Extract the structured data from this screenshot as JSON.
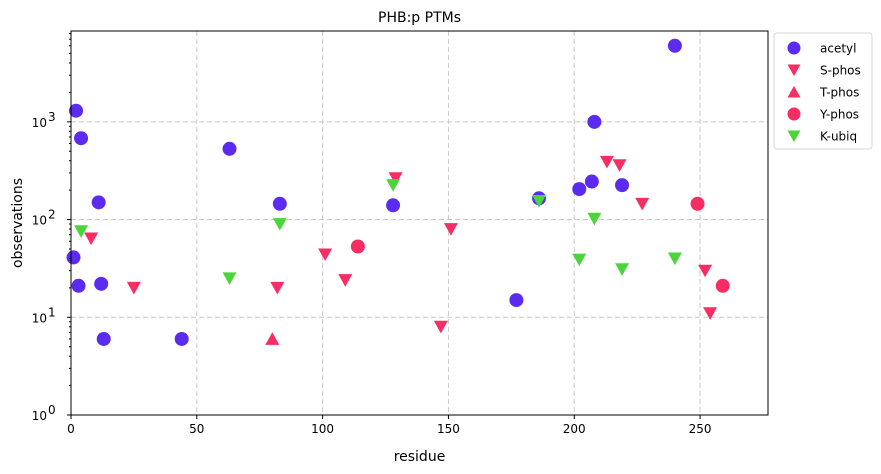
{
  "chart_data": {
    "type": "scatter",
    "title": "PHB:p PTMs",
    "xlabel": "residue",
    "ylabel": "observations",
    "xlim": [
      0,
      277
    ],
    "ylim": [
      1,
      8500
    ],
    "yscale": "log",
    "grid": true,
    "grid_style": "dashed",
    "legend_position": "outside-top-right",
    "x_ticks": [
      0,
      50,
      100,
      150,
      200,
      250
    ],
    "y_ticks": [
      {
        "value": 1,
        "base": "10",
        "exp": "0"
      },
      {
        "value": 10,
        "base": "10",
        "exp": "1"
      },
      {
        "value": 100,
        "base": "10",
        "exp": "2"
      },
      {
        "value": 1000,
        "base": "10",
        "exp": "3"
      }
    ],
    "series": [
      {
        "name": "acetyl",
        "marker": "circle",
        "color": "#5b2cf0",
        "points": [
          [
            1,
            41
          ],
          [
            2,
            1300
          ],
          [
            3,
            21
          ],
          [
            4,
            680
          ],
          [
            11,
            150
          ],
          [
            12,
            22
          ],
          [
            13,
            6
          ],
          [
            44,
            6
          ],
          [
            63,
            530
          ],
          [
            83,
            145
          ],
          [
            128,
            140
          ],
          [
            177,
            15
          ],
          [
            186,
            165
          ],
          [
            202,
            205
          ],
          [
            207,
            245
          ],
          [
            208,
            1000
          ],
          [
            219,
            225
          ],
          [
            240,
            6000
          ]
        ]
      },
      {
        "name": "S-phos",
        "marker": "triangle-down",
        "color": "#f72d63",
        "points": [
          [
            8,
            64
          ],
          [
            25,
            20
          ],
          [
            82,
            20
          ],
          [
            101,
            44
          ],
          [
            109,
            24
          ],
          [
            129,
            265
          ],
          [
            147,
            8
          ],
          [
            151,
            80
          ],
          [
            213,
            390
          ],
          [
            218,
            360
          ],
          [
            227,
            145
          ],
          [
            252,
            30
          ],
          [
            254,
            11
          ]
        ]
      },
      {
        "name": "T-phos",
        "marker": "triangle-up",
        "color": "#f72d63",
        "points": [
          [
            80,
            6
          ]
        ]
      },
      {
        "name": "Y-phos",
        "marker": "circle",
        "color": "#f72d63",
        "points": [
          [
            114,
            53
          ],
          [
            249,
            145
          ],
          [
            259,
            21
          ]
        ]
      },
      {
        "name": "K-ubiq",
        "marker": "triangle-down",
        "color": "#4cd43d",
        "points": [
          [
            4,
            76
          ],
          [
            63,
            25
          ],
          [
            83,
            90
          ],
          [
            128,
            225
          ],
          [
            186,
            155
          ],
          [
            202,
            39
          ],
          [
            208,
            102
          ],
          [
            219,
            31
          ],
          [
            240,
            40
          ]
        ]
      }
    ]
  }
}
